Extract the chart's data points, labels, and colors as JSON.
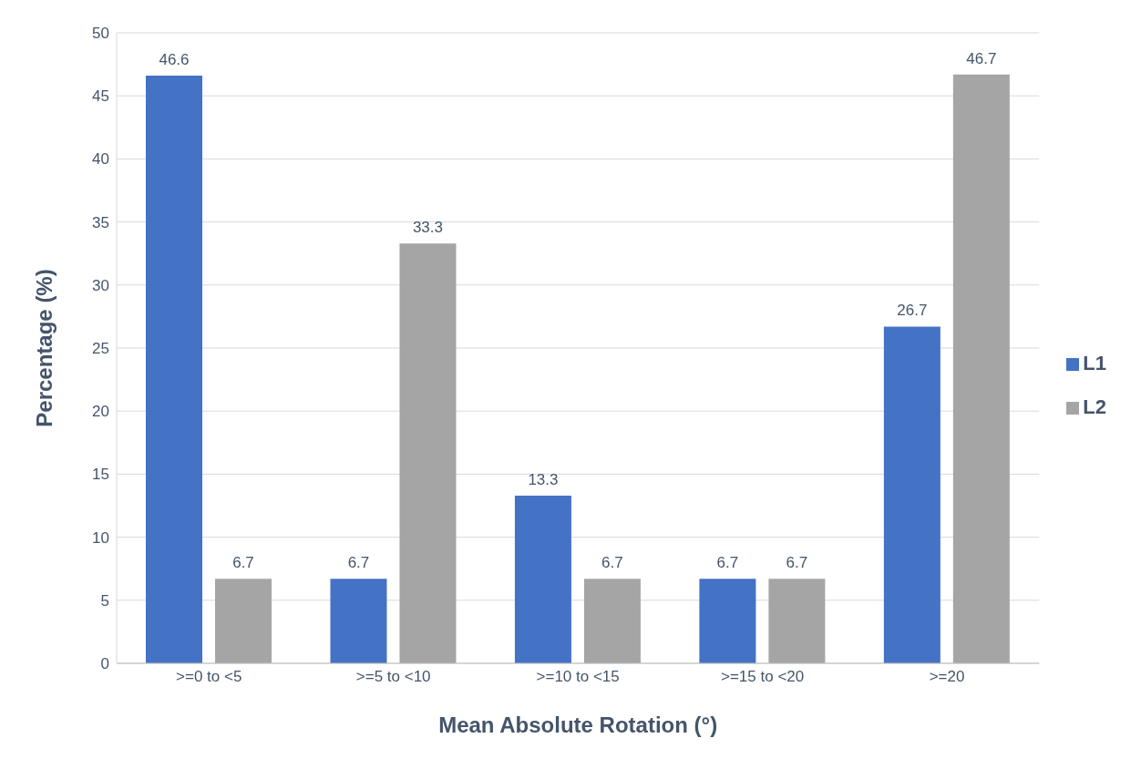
{
  "chart_data": {
    "type": "bar",
    "xlabel": "Mean Absolute Rotation (°)",
    "ylabel": "Percentage (%)",
    "categories": [
      ">=0 to <5",
      ">=5 to <10",
      ">=10 to <15",
      ">=15 to <20",
      ">=20"
    ],
    "series": [
      {
        "name": "L1",
        "color": "#4472c4",
        "values": [
          46.6,
          6.7,
          13.3,
          6.7,
          26.7
        ]
      },
      {
        "name": "L2",
        "color": "#a5a5a5",
        "values": [
          6.7,
          33.3,
          6.7,
          6.7,
          46.7
        ]
      }
    ],
    "ylim": [
      0,
      50
    ],
    "yticks": [
      0,
      5,
      10,
      15,
      20,
      25,
      30,
      35,
      40,
      45,
      50
    ],
    "grid": "y",
    "legend": "right",
    "data_labels": true
  }
}
